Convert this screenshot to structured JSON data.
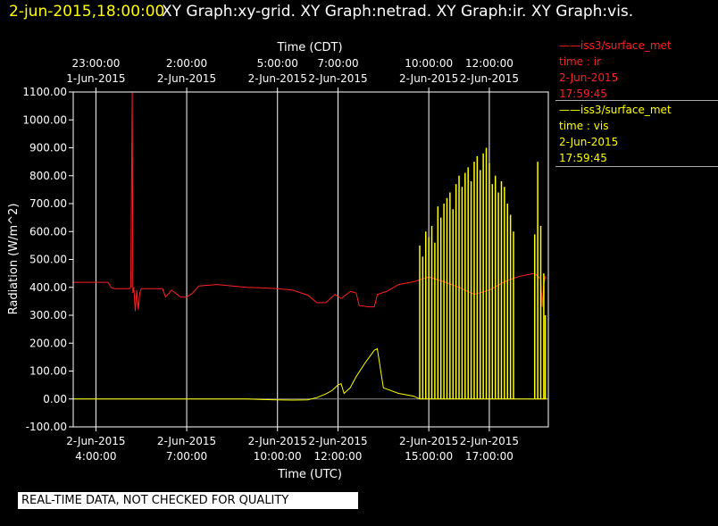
{
  "header": {
    "date_label": "2-jun-2015,18:00:00",
    "graphs_label": "XY Graph:xy-grid.  XY Graph:netrad.  XY Graph:ir.  XY Graph:vis."
  },
  "legend": [
    {
      "line": "——iss3/surface_met",
      "field": "time : ir",
      "date": "2-Jun-2015",
      "time": "17:59:45",
      "color": "#ff2020"
    },
    {
      "line": "——iss3/surface_met",
      "field": "time : vis",
      "date": "2-Jun-2015",
      "time": "17:59:45",
      "color": "#ffff00"
    }
  ],
  "footer_note": "REAL-TIME DATA, NOT CHECKED FOR QUALITY",
  "chart_data": {
    "type": "line",
    "title": "",
    "xlabel_bottom": "Time (UTC)",
    "xlabel_top": "Time (CDT)",
    "ylabel": "Radiation (W/m^2)",
    "xlim_hours_utc": [
      3.25,
      18.95
    ],
    "ylim": [
      -100,
      1100
    ],
    "y_ticks": [
      -100,
      0,
      100,
      200,
      300,
      400,
      500,
      600,
      700,
      800,
      900,
      1000,
      1100
    ],
    "y_tick_labels": [
      "-100.00",
      "0.00",
      "100.00",
      "200.00",
      "300.00",
      "400.00",
      "500.00",
      "600.00",
      "700.00",
      "800.00",
      "900.00",
      "1000.00",
      "1100.00"
    ],
    "grid": true,
    "x_ticks_bottom": [
      {
        "x": 4,
        "date": "2-Jun-2015",
        "time": "4:00:00"
      },
      {
        "x": 7,
        "date": "2-Jun-2015",
        "time": "7:00:00"
      },
      {
        "x": 10,
        "date": "2-Jun-2015",
        "time": "10:00:00"
      },
      {
        "x": 12,
        "date": "2-Jun-2015",
        "time": "12:00:00"
      },
      {
        "x": 15,
        "date": "2-Jun-2015",
        "time": "15:00:00"
      },
      {
        "x": 17,
        "date": "2-Jun-2015",
        "time": "17:00:00"
      }
    ],
    "x_ticks_top": [
      {
        "x": 4,
        "time": "23:00:00",
        "date": "1-Jun-2015"
      },
      {
        "x": 7,
        "time": "2:00:00",
        "date": "2-Jun-2015"
      },
      {
        "x": 10,
        "time": "5:00:00",
        "date": "2-Jun-2015"
      },
      {
        "x": 12,
        "time": "7:00:00",
        "date": "2-Jun-2015"
      },
      {
        "x": 15,
        "time": "10:00:00",
        "date": "2-Jun-2015"
      },
      {
        "x": 17,
        "time": "12:00:00",
        "date": "2-Jun-2015"
      }
    ],
    "series": [
      {
        "name": "iss3/surface_met time : ir",
        "color": "#ff2020",
        "points": [
          [
            3.25,
            418
          ],
          [
            3.9,
            418
          ],
          [
            4.4,
            418
          ],
          [
            4.5,
            400
          ],
          [
            4.6,
            395
          ],
          [
            5.1,
            395
          ],
          [
            5.15,
            400
          ],
          [
            5.2,
            1098
          ],
          [
            5.22,
            380
          ],
          [
            5.25,
            400
          ],
          [
            5.3,
            315
          ],
          [
            5.35,
            390
          ],
          [
            5.4,
            320
          ],
          [
            5.45,
            380
          ],
          [
            5.5,
            395
          ],
          [
            6.2,
            395
          ],
          [
            6.3,
            365
          ],
          [
            6.5,
            390
          ],
          [
            6.8,
            365
          ],
          [
            7.0,
            365
          ],
          [
            7.2,
            380
          ],
          [
            7.4,
            405
          ],
          [
            8.0,
            410
          ],
          [
            8.5,
            405
          ],
          [
            9.0,
            400
          ],
          [
            9.5,
            398
          ],
          [
            10.0,
            395
          ],
          [
            10.5,
            390
          ],
          [
            11.0,
            372
          ],
          [
            11.3,
            345
          ],
          [
            11.6,
            345
          ],
          [
            11.9,
            375
          ],
          [
            12.1,
            360
          ],
          [
            12.4,
            385
          ],
          [
            12.6,
            380
          ],
          [
            12.7,
            335
          ],
          [
            13.0,
            330
          ],
          [
            13.2,
            330
          ],
          [
            13.3,
            375
          ],
          [
            13.6,
            385
          ],
          [
            14.0,
            410
          ],
          [
            14.5,
            420
          ],
          [
            15.0,
            437
          ],
          [
            15.5,
            420
          ],
          [
            16.0,
            400
          ],
          [
            16.5,
            375
          ],
          [
            17.0,
            390
          ],
          [
            17.5,
            420
          ],
          [
            18.0,
            440
          ],
          [
            18.5,
            450
          ],
          [
            18.7,
            430
          ],
          [
            18.75,
            330
          ],
          [
            18.8,
            410
          ],
          [
            18.85,
            440
          ]
        ]
      },
      {
        "name": "iss3/surface_met time : vis",
        "color": "#ffff00",
        "baseline": [
          [
            3.25,
            0
          ],
          [
            9.0,
            0
          ],
          [
            9.5,
            -2
          ],
          [
            10.0,
            -3
          ],
          [
            10.5,
            -4
          ],
          [
            11.0,
            -3
          ],
          [
            11.3,
            5
          ],
          [
            11.6,
            18
          ],
          [
            11.8,
            30
          ],
          [
            12.0,
            50
          ],
          [
            12.1,
            55
          ],
          [
            12.2,
            20
          ],
          [
            12.4,
            40
          ],
          [
            12.6,
            80
          ],
          [
            12.9,
            130
          ],
          [
            13.1,
            160
          ],
          [
            13.2,
            175
          ],
          [
            13.3,
            180
          ],
          [
            13.5,
            40
          ],
          [
            14.0,
            20
          ],
          [
            14.5,
            10
          ],
          [
            14.7,
            0
          ],
          [
            17.8,
            0
          ],
          [
            18.2,
            0
          ],
          [
            18.9,
            0
          ]
        ],
        "spikes": [
          [
            14.7,
            550
          ],
          [
            14.8,
            510
          ],
          [
            14.9,
            600
          ],
          [
            15.0,
            580
          ],
          [
            15.1,
            620
          ],
          [
            15.2,
            560
          ],
          [
            15.3,
            690
          ],
          [
            15.4,
            650
          ],
          [
            15.5,
            700
          ],
          [
            15.6,
            720
          ],
          [
            15.7,
            740
          ],
          [
            15.8,
            680
          ],
          [
            15.9,
            770
          ],
          [
            16.0,
            800
          ],
          [
            16.1,
            760
          ],
          [
            16.2,
            810
          ],
          [
            16.3,
            830
          ],
          [
            16.4,
            780
          ],
          [
            16.5,
            850
          ],
          [
            16.6,
            870
          ],
          [
            16.7,
            820
          ],
          [
            16.8,
            880
          ],
          [
            16.9,
            900
          ],
          [
            17.0,
            845
          ],
          [
            17.1,
            770
          ],
          [
            17.2,
            800
          ],
          [
            17.3,
            740
          ],
          [
            17.4,
            780
          ],
          [
            17.5,
            760
          ],
          [
            17.6,
            700
          ],
          [
            17.7,
            660
          ],
          [
            17.8,
            600
          ],
          [
            18.5,
            590
          ],
          [
            18.6,
            850
          ],
          [
            18.7,
            620
          ],
          [
            18.8,
            450
          ],
          [
            18.85,
            300
          ]
        ]
      }
    ]
  }
}
